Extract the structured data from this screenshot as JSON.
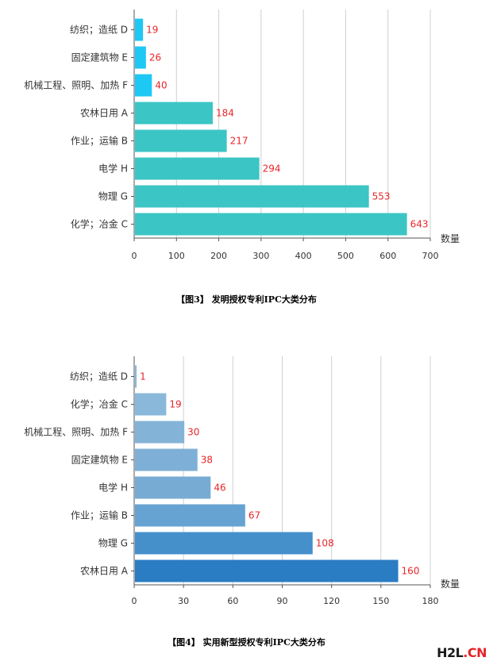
{
  "chart_data": [
    {
      "type": "bar",
      "orientation": "horizontal",
      "caption": "【图3】 发明授权专利IPC大类分布",
      "xlabel": "数量",
      "xlim": [
        0,
        700
      ],
      "xticks": [
        0,
        100,
        200,
        300,
        400,
        500,
        600,
        700
      ],
      "grid": true,
      "categories": [
        "纺织；造纸 D",
        "固定建筑物 E",
        "机械工程、照明、加热 F",
        "农林日用 A",
        "作业；运输 B",
        "电学 H",
        "物理 G",
        "化学；冶金 C"
      ],
      "values": [
        19,
        26,
        40,
        184,
        217,
        294,
        553,
        643
      ],
      "colors": [
        "#1ec8f4",
        "#1ec8f4",
        "#1ec8f4",
        "#3cc5c5",
        "#3cc5c5",
        "#3cc5c5",
        "#3cc5c5",
        "#3cc5c5"
      ],
      "label_color": "#e8262a"
    },
    {
      "type": "bar",
      "orientation": "horizontal",
      "caption": "【图4】 实用新型授权专利IPC大类分布",
      "xlabel": "数量",
      "xlim": [
        0,
        180
      ],
      "xticks": [
        0,
        30,
        60,
        90,
        120,
        150,
        180
      ],
      "grid": true,
      "categories": [
        "纺织；造纸 D",
        "化学；冶金 C",
        "机械工程、照明、加热 F",
        "固定建筑物 E",
        "电学 H",
        "作业；运输 B",
        "物理 G",
        "农林日用 A"
      ],
      "values": [
        1,
        19,
        30,
        38,
        46,
        67,
        108,
        160
      ],
      "colors": [
        "#8ab8da",
        "#8ab8da",
        "#84b3d8",
        "#7eafd6",
        "#78abd4",
        "#66a3d2",
        "#4590cb",
        "#2a7cc3"
      ],
      "label_color": "#e8262a"
    }
  ],
  "watermark": {
    "main": "H2L",
    "accent": ".CN"
  }
}
